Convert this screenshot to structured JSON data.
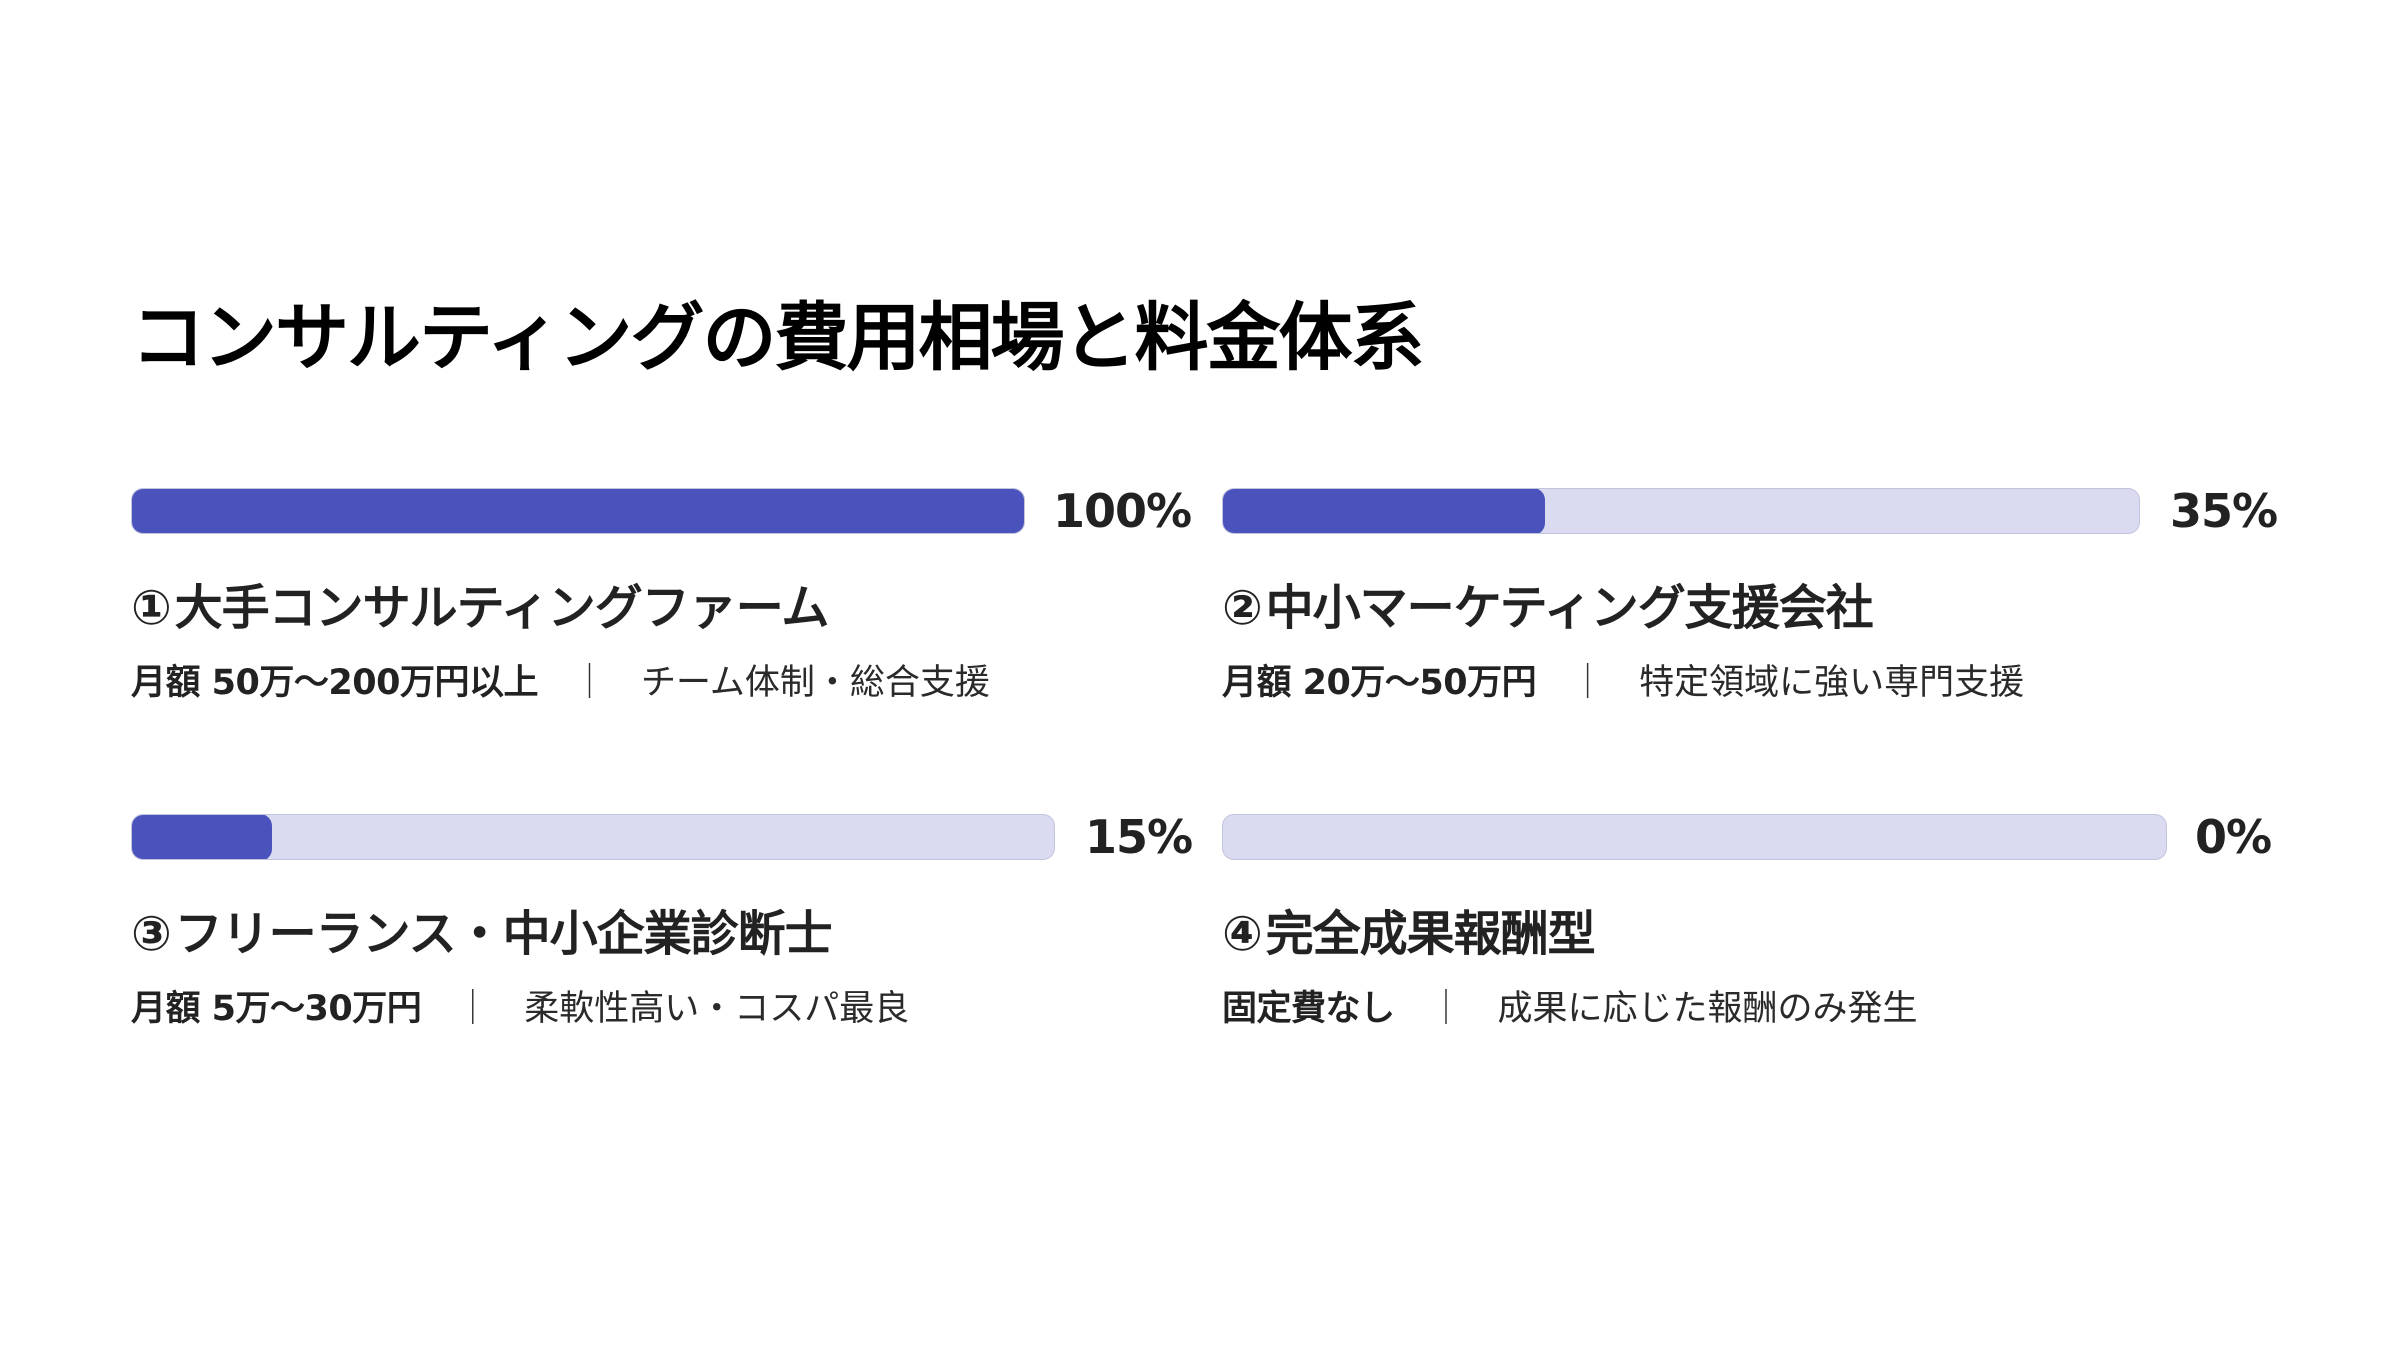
{
  "title": "コンサルティングの費用相場と料金体系",
  "colors": {
    "fill": "#4A52BB",
    "track": "#DADBF0",
    "track_border": "#C2C3DD",
    "text": "#222222",
    "title": "#000000"
  },
  "items": [
    {
      "number": "①",
      "name": "大手コンサルティングファーム",
      "percent": 100,
      "percent_label": "100%",
      "price": "月額 50万〜200万円以上",
      "separator": "｜",
      "description": "チーム体制・総合支援"
    },
    {
      "number": "②",
      "name": "中小マーケティング支援会社",
      "percent": 35,
      "percent_label": "35%",
      "price": "月額 20万〜50万円",
      "separator": "｜",
      "description": "特定領域に強い専門支援"
    },
    {
      "number": "③",
      "name": "フリーランス・中小企業診断士",
      "percent": 15,
      "percent_label": "15%",
      "price": "月額 5万〜30万円",
      "separator": "｜",
      "description": "柔軟性高い・コスパ最良"
    },
    {
      "number": "④",
      "name": "完全成果報酬型",
      "percent": 0,
      "percent_label": "0%",
      "price": "固定費なし",
      "separator": "｜",
      "description": "成果に応じた報酬のみ発生"
    }
  ],
  "chart_data": {
    "type": "bar",
    "orientation": "horizontal",
    "title": "コンサルティングの費用相場と料金体系",
    "categories": [
      "大手コンサルティングファーム",
      "中小マーケティング支援会社",
      "フリーランス・中小企業診断士",
      "完全成果報酬型"
    ],
    "values": [
      100,
      35,
      15,
      0
    ],
    "value_labels": [
      "100%",
      "35%",
      "15%",
      "0%"
    ],
    "annotations": [
      "月額 50万〜200万円以上 ｜ チーム体制・総合支援",
      "月額 20万〜50万円 ｜ 特定領域に強い専門支援",
      "月額 5万〜30万円 ｜ 柔軟性高い・コスパ最良",
      "固定費なし ｜ 成果に応じた報酬のみ発生"
    ],
    "xlim": [
      0,
      100
    ],
    "xlabel": "",
    "ylabel": "",
    "grid": false,
    "legend": "none",
    "layout": "2x2 grid of progress bars"
  }
}
